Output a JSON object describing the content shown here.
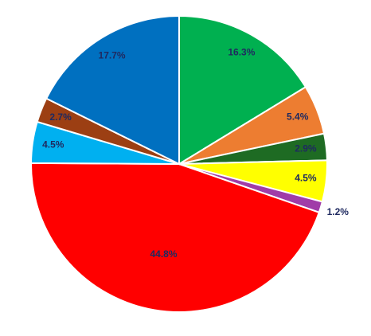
{
  "chart_data": {
    "type": "pie",
    "values": [
      16.3,
      5.4,
      2.9,
      4.5,
      1.2,
      44.8,
      4.5,
      2.7,
      17.7
    ],
    "value_labels": [
      "16.3%",
      "5.4%",
      "2.9%",
      "4.5%",
      "1.2%",
      "44.8%",
      "4.5%",
      "2.7%",
      "17.7%"
    ],
    "colors": [
      "#00b050",
      "#ed7d31",
      "#1e6b23",
      "#ffff00",
      "#a03ca8",
      "#ff0000",
      "#00b0f0",
      "#9c3f13",
      "#0070c0"
    ]
  }
}
